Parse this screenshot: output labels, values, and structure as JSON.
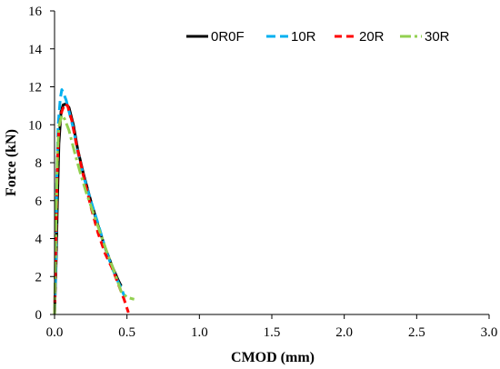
{
  "chart_data": {
    "type": "line",
    "title": "",
    "xlabel": "CMOD (mm)",
    "ylabel": "Force (kN)",
    "xlim": [
      0,
      3.0
    ],
    "ylim": [
      0,
      16
    ],
    "x_ticks": [
      0,
      0.5,
      1.0,
      1.5,
      2.0,
      2.5,
      3.0
    ],
    "x_tick_labels": [
      "0.0",
      "0.5",
      "1.0",
      "1.5",
      "2.0",
      "2.5",
      "3.0"
    ],
    "y_ticks": [
      0,
      2,
      4,
      6,
      8,
      10,
      12,
      14,
      16
    ],
    "y_tick_labels": [
      "0",
      "2",
      "4",
      "6",
      "8",
      "10",
      "12",
      "14",
      "16"
    ],
    "grid": false,
    "legend_position": "top-right",
    "series": [
      {
        "name": "0R0F",
        "color": "#000000",
        "dash": "solid",
        "points": [
          [
            0,
            0
          ],
          [
            0.01,
            2.5
          ],
          [
            0.02,
            6
          ],
          [
            0.03,
            9
          ],
          [
            0.045,
            10.7
          ],
          [
            0.06,
            11.05
          ],
          [
            0.08,
            11.1
          ],
          [
            0.1,
            10.9
          ],
          [
            0.13,
            10.0
          ],
          [
            0.16,
            8.7
          ],
          [
            0.2,
            7.4
          ],
          [
            0.25,
            6.0
          ],
          [
            0.3,
            4.7
          ],
          [
            0.35,
            3.5
          ],
          [
            0.4,
            2.5
          ],
          [
            0.44,
            1.8
          ],
          [
            0.46,
            1.5
          ]
        ]
      },
      {
        "name": "10R",
        "color": "#00b0f0",
        "dash": "long",
        "points": [
          [
            0,
            0
          ],
          [
            0.01,
            3
          ],
          [
            0.015,
            7
          ],
          [
            0.025,
            10
          ],
          [
            0.04,
            11.4
          ],
          [
            0.05,
            11.85
          ],
          [
            0.06,
            11.7
          ],
          [
            0.08,
            11.3
          ],
          [
            0.1,
            10.7
          ],
          [
            0.13,
            9.8
          ],
          [
            0.16,
            8.6
          ],
          [
            0.2,
            7.3
          ],
          [
            0.25,
            6.0
          ],
          [
            0.3,
            4.8
          ],
          [
            0.35,
            3.5
          ],
          [
            0.4,
            2.4
          ],
          [
            0.44,
            1.7
          ],
          [
            0.46,
            1.4
          ],
          [
            0.48,
            1.0
          ]
        ]
      },
      {
        "name": "20R",
        "color": "#ff0000",
        "dash": "medium",
        "points": [
          [
            0,
            0
          ],
          [
            0.01,
            4
          ],
          [
            0.02,
            8
          ],
          [
            0.03,
            9.8
          ],
          [
            0.05,
            10.7
          ],
          [
            0.07,
            11.1
          ],
          [
            0.09,
            11.0
          ],
          [
            0.12,
            10.2
          ],
          [
            0.15,
            9.0
          ],
          [
            0.2,
            7.3
          ],
          [
            0.25,
            5.7
          ],
          [
            0.3,
            4.3
          ],
          [
            0.35,
            3.2
          ],
          [
            0.4,
            2.4
          ],
          [
            0.44,
            1.6
          ],
          [
            0.48,
            0.8
          ],
          [
            0.51,
            0.1
          ]
        ]
      },
      {
        "name": "30R",
        "color": "#92d050",
        "dash": "dashdot",
        "points": [
          [
            0,
            0
          ],
          [
            0.01,
            5
          ],
          [
            0.02,
            8.5
          ],
          [
            0.03,
            9.9
          ],
          [
            0.05,
            10.5
          ],
          [
            0.07,
            10.3
          ],
          [
            0.1,
            9.7
          ],
          [
            0.14,
            8.5
          ],
          [
            0.18,
            7.4
          ],
          [
            0.22,
            6.4
          ],
          [
            0.27,
            5.3
          ],
          [
            0.32,
            4.2
          ],
          [
            0.37,
            3.1
          ],
          [
            0.42,
            2.1
          ],
          [
            0.46,
            1.2
          ],
          [
            0.5,
            0.9
          ],
          [
            0.55,
            0.8
          ]
        ]
      }
    ]
  }
}
